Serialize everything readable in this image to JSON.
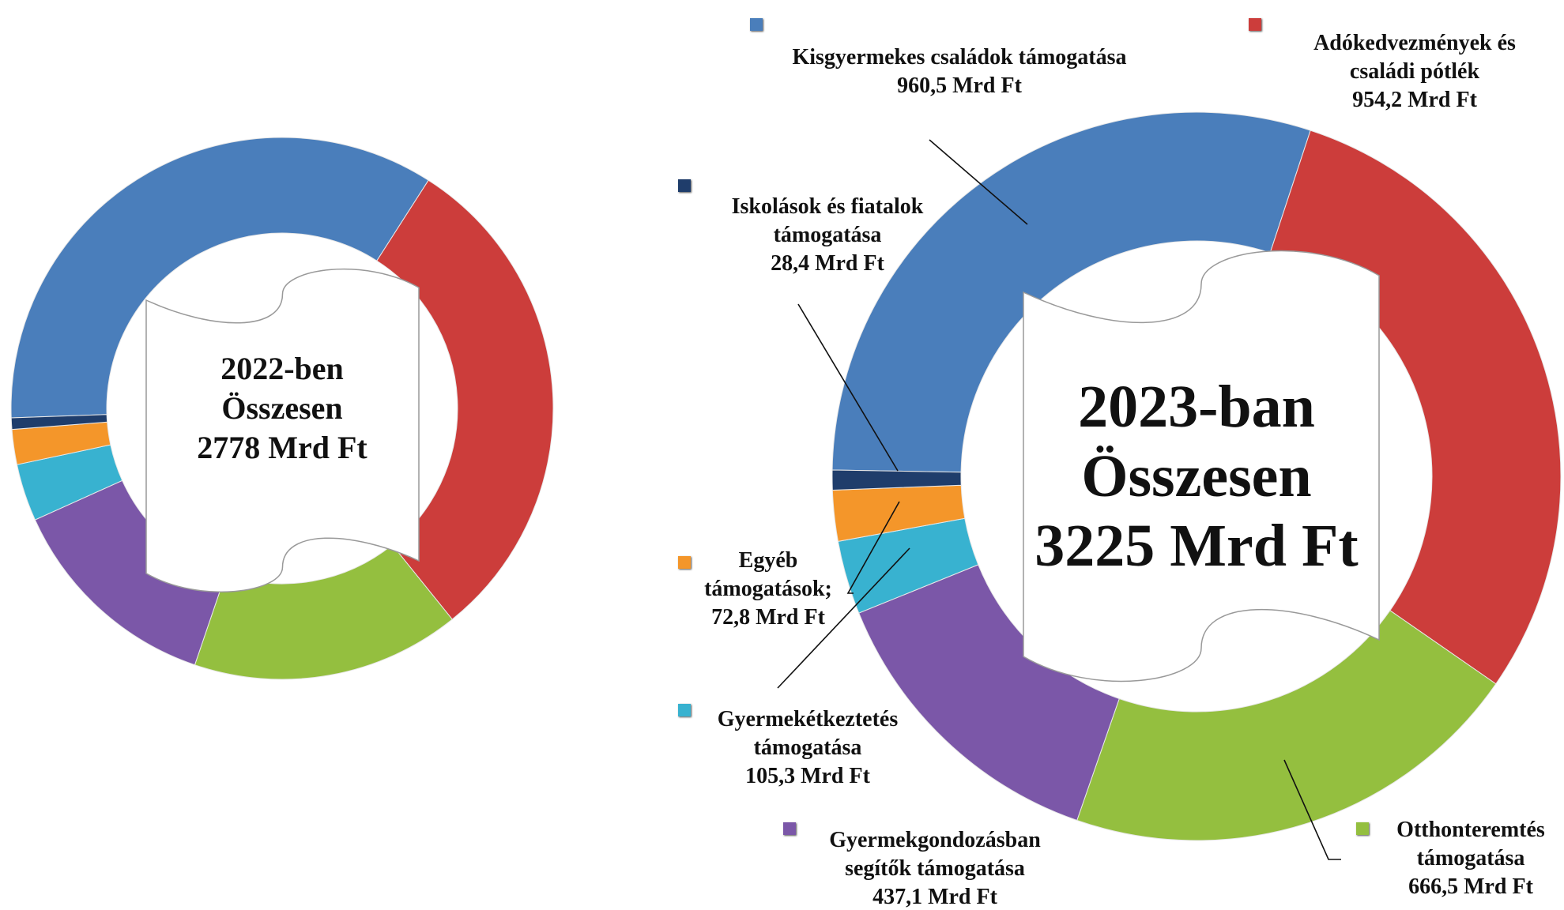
{
  "chart_data": [
    {
      "type": "donut",
      "title": "2022-ben Összesen 2778 Mrd Ft",
      "values": [
        962,
        837,
        445,
        362,
        95,
        58,
        19
      ],
      "colors": [
        "#4a7ebb",
        "#cc3d3b",
        "#94bf3f",
        "#7b57a8",
        "#38b2d0",
        "#f4962a",
        "#1f3d6b"
      ]
    },
    {
      "type": "donut",
      "title": "2023-ban Összesen 3225 Mrd Ft",
      "categories": [
        "Kisgyermekes családok támogatása",
        "Adókedvezmények és családi pótlék",
        "Otthonteremtés támogatása",
        "Gyermekgondozásban segítők támogatása",
        "Gyermekétkeztetés támogatása",
        "Egyéb támogatások;",
        "Iskolások és fiatalok támogatása"
      ],
      "values": [
        960.5,
        954.2,
        666.5,
        437.1,
        105.3,
        72.8,
        28.4
      ],
      "value_labels": [
        "960,5 Mrd Ft",
        "954,2 Mrd Ft",
        "666,5 Mrd Ft",
        "437,1 Mrd Ft",
        "105,3 Mrd Ft",
        "72,8 Mrd Ft",
        "28,4 Mrd Ft"
      ],
      "colors": [
        "#4a7ebb",
        "#cc3d3b",
        "#94bf3f",
        "#7b57a8",
        "#38b2d0",
        "#f4962a",
        "#1f3d6b"
      ]
    }
  ]
}
